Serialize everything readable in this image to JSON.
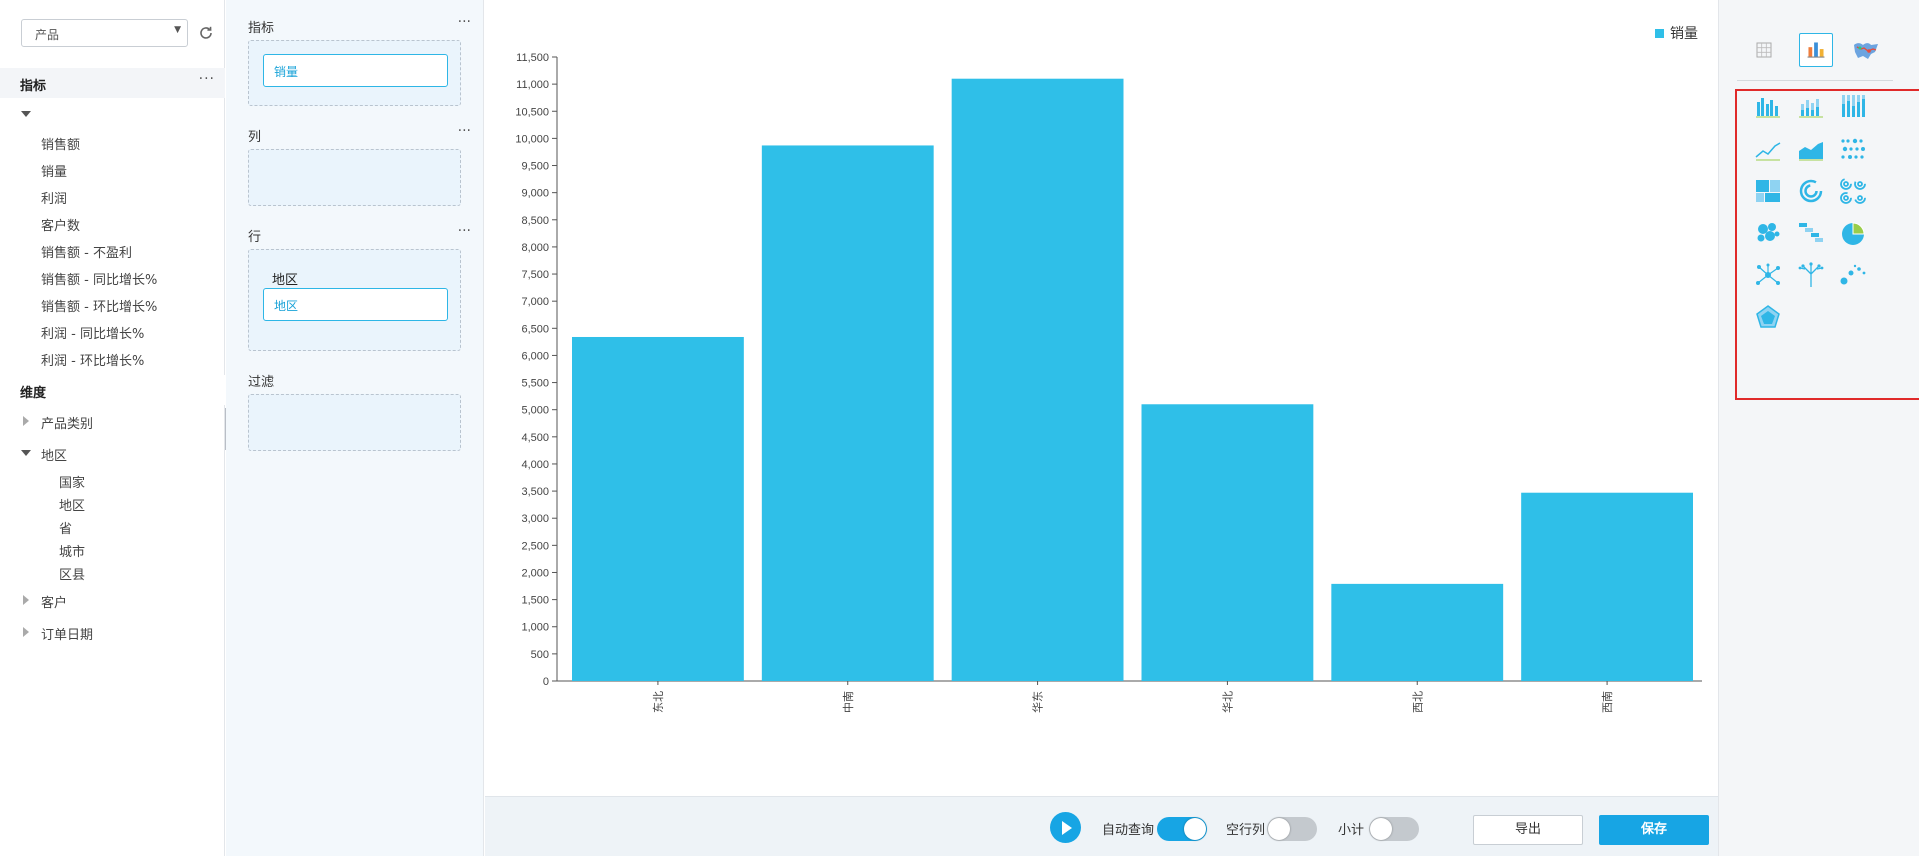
{
  "left_panel": {
    "select_value": "产品",
    "measures_title": "指标",
    "measures_more": "···",
    "measures": [
      "销售额",
      "销量",
      "利润",
      "客户数",
      "销售额 - 不盈利",
      "销售额 - 同比增长%",
      "销售额 - 环比增长%",
      "利润 - 同比增长%",
      "利润 - 环比增长%"
    ],
    "dimensions_title": "维度",
    "dimensions": [
      {
        "label": "产品类别",
        "expanded": false
      },
      {
        "label": "地区",
        "expanded": true,
        "children": [
          "国家",
          "地区",
          "省",
          "城市",
          "区县"
        ]
      },
      {
        "label": "客户",
        "expanded": false
      },
      {
        "label": "订单日期",
        "expanded": false
      }
    ]
  },
  "shelf": {
    "measures_label": "指标",
    "measures_chip": "销量",
    "columns_label": "列",
    "rows_label": "行",
    "rows_group_label": "地区",
    "rows_chip": "地区",
    "filter_label": "过滤",
    "more": "···"
  },
  "chart_data": {
    "type": "bar",
    "categories": [
      "东北",
      "中南",
      "华东",
      "华北",
      "西北",
      "西南"
    ],
    "series": [
      {
        "name": "销量",
        "values": [
          6340,
          9870,
          11100,
          5100,
          1790,
          3470
        ],
        "color": "#2fbfe8"
      }
    ],
    "ylim": [
      0,
      11500
    ],
    "y_ticks": [
      0,
      500,
      1000,
      1500,
      2000,
      2500,
      3000,
      3500,
      4000,
      4500,
      5000,
      5500,
      6000,
      6500,
      7000,
      7500,
      8000,
      8500,
      9000,
      9500,
      10000,
      10500,
      11000,
      11500
    ],
    "legend": "top-right",
    "xlabel": "",
    "ylabel": "",
    "grid": false
  },
  "bottom_bar": {
    "auto_query_label": "自动查询",
    "auto_query_on": true,
    "empty_cols_label": "空行列",
    "empty_cols_on": false,
    "subtotal_label": "小计",
    "subtotal_on": false,
    "export_label": "导出",
    "save_label": "保存"
  },
  "right_panel": {
    "view_icons": [
      "table-icon",
      "chart-icon",
      "map-icon"
    ],
    "selected_view": "chart-icon",
    "chart_types": [
      "clustered-bar-icon",
      "stacked-bar-icon",
      "percent-bar-icon",
      "line-chart-icon",
      "area-chart-icon",
      "dot-strip-icon",
      "treemap-icon",
      "radial-ring-icon",
      "multi-ring-icon",
      "bubble-cluster-icon",
      "waterfall-icon",
      "pie-chart-icon",
      "network-graph-icon",
      "tree-diagram-icon",
      "scatter-plot-icon",
      "radar-chart-icon"
    ]
  },
  "colors": {
    "accent": "#17a5e4",
    "bar": "#2fbfe8",
    "highlight_border": "#e02a2a"
  }
}
